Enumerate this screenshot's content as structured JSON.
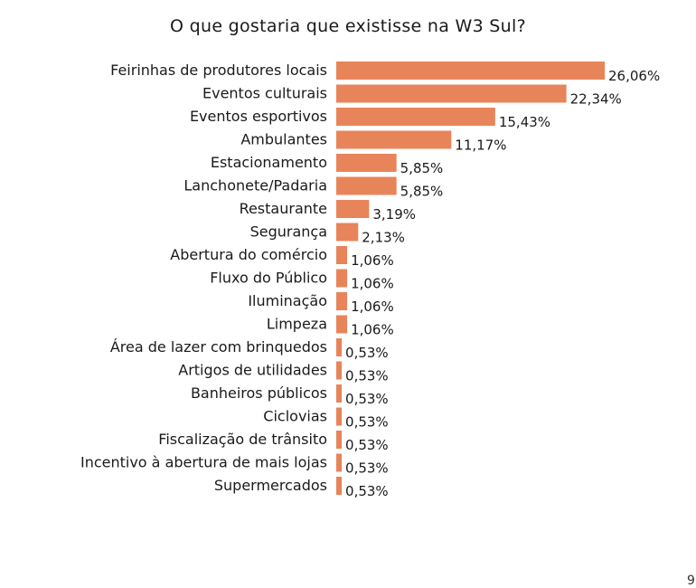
{
  "chart_data": {
    "type": "bar",
    "orientation": "horizontal",
    "title": "O que gostaria que existisse na W3 Sul?",
    "bar_color": "#E8845A",
    "categories": [
      "Feirinhas de produtores locais",
      "Eventos culturais",
      "Eventos esportivos",
      "Ambulantes",
      "Estacionamento",
      "Lanchonete/Padaria",
      "Restaurante",
      "Segurança",
      "Abertura do comércio",
      "Fluxo do Público",
      "Iluminação",
      "Limpeza",
      "Área de lazer com brinquedos",
      "Artigos de utilidades",
      "Banheiros públicos",
      "Ciclovias",
      "Fiscalização de trânsito",
      "Incentivo à abertura de mais lojas",
      "Supermercados"
    ],
    "values": [
      26.06,
      22.34,
      15.43,
      11.17,
      5.85,
      5.85,
      3.19,
      2.13,
      1.06,
      1.06,
      1.06,
      1.06,
      0.53,
      0.53,
      0.53,
      0.53,
      0.53,
      0.53,
      0.53
    ],
    "value_labels": [
      "26,06%",
      "22,34%",
      "15,43%",
      "11,17%",
      "5,85%",
      "5,85%",
      "3,19%",
      "2,13%",
      "1,06%",
      "1,06%",
      "1,06%",
      "1,06%",
      "0,53%",
      "0,53%",
      "0,53%",
      "0,53%",
      "0,53%",
      "0,53%",
      "0,53%"
    ],
    "xlim": [
      0,
      26.06
    ],
    "grid": false,
    "legend": "none"
  },
  "page_number": "9"
}
